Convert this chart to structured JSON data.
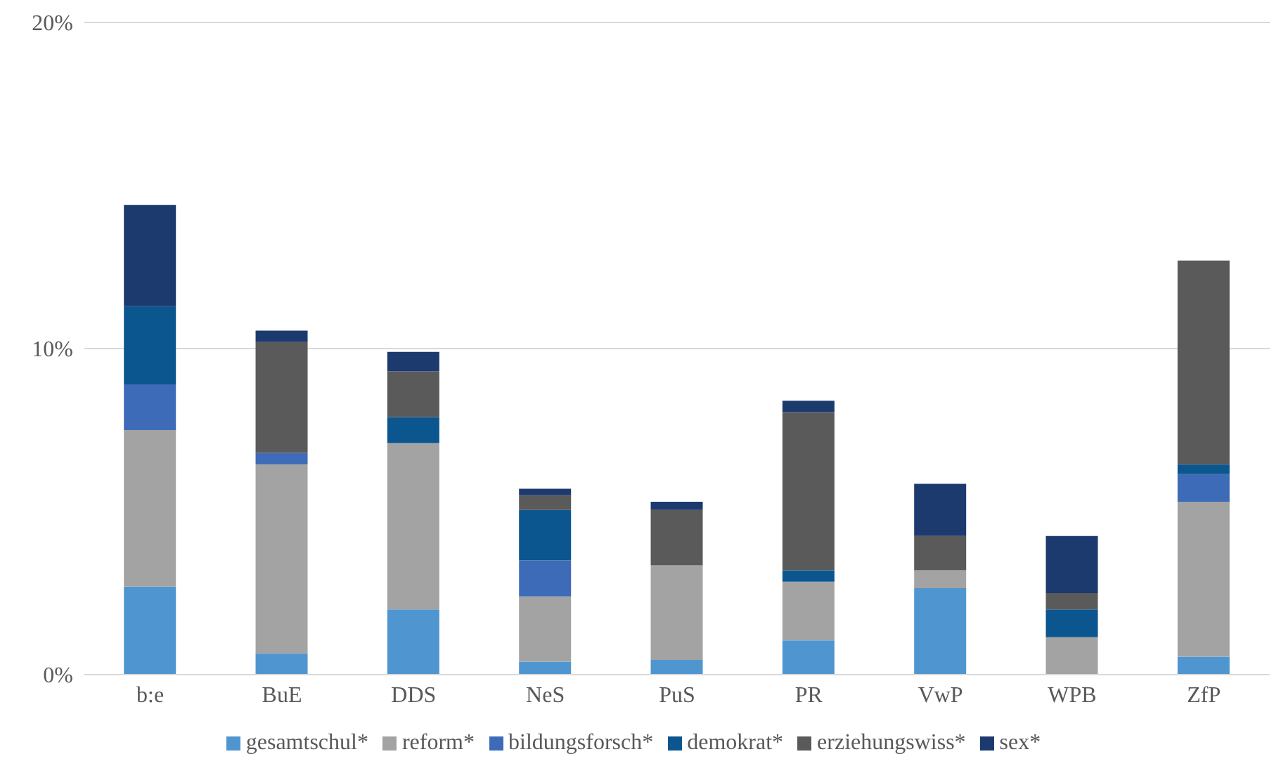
{
  "chart_data": {
    "type": "bar",
    "stacked": true,
    "categories": [
      "b:e",
      "BuE",
      "DDS",
      "NeS",
      "PuS",
      "PR",
      "VwP",
      "WPB",
      "ZfP"
    ],
    "series": [
      {
        "name": "gesamtschul*",
        "color": "#4f96d1",
        "values": [
          2.7,
          0.65,
          2.0,
          0.4,
          0.45,
          1.05,
          2.65,
          0,
          0.55
        ]
      },
      {
        "name": "reform*",
        "color": "#a3a3a3",
        "values": [
          4.8,
          5.8,
          5.1,
          2.0,
          2.9,
          1.8,
          0.55,
          1.15,
          4.75
        ]
      },
      {
        "name": "bildungsforsch*",
        "color": "#3e6bb8",
        "values": [
          1.4,
          0.35,
          0,
          1.1,
          0,
          0,
          0,
          0,
          0.85
        ]
      },
      {
        "name": "demokrat*",
        "color": "#0b568e",
        "values": [
          2.4,
          0,
          0.8,
          1.55,
          0,
          0.35,
          0,
          0.85,
          0.3
        ]
      },
      {
        "name": "erziehungswiss*",
        "color": "#5a5a5a",
        "values": [
          0,
          3.4,
          1.4,
          0.45,
          1.7,
          4.85,
          1.05,
          0.5,
          6.25
        ]
      },
      {
        "name": "sex*",
        "color": "#1c3a6e",
        "values": [
          3.1,
          0.35,
          0.6,
          0.2,
          0.25,
          0.35,
          1.6,
          1.75,
          0
        ]
      }
    ],
    "ylim": [
      0,
      20
    ],
    "yticks": [
      {
        "value": 0,
        "label": "0%"
      },
      {
        "value": 10,
        "label": "10%"
      },
      {
        "value": 20,
        "label": "20%"
      }
    ],
    "grid": "y",
    "legend": "bottom"
  }
}
